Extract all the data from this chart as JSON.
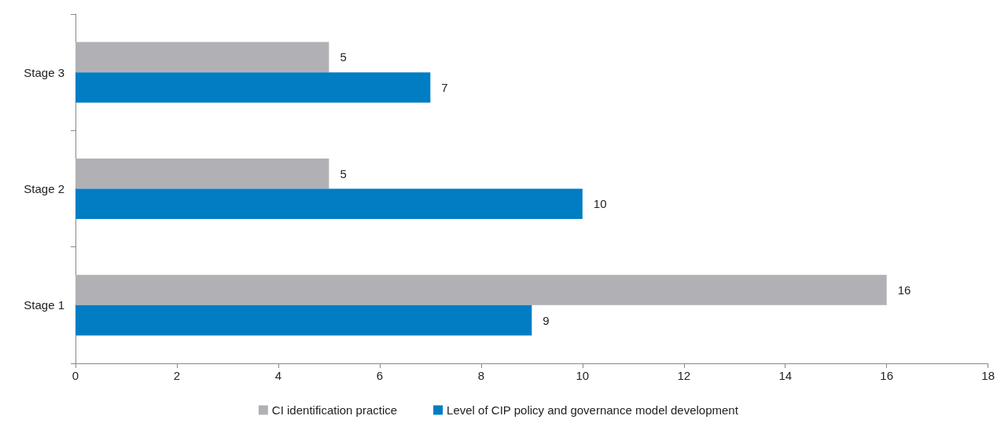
{
  "chart_data": {
    "type": "bar",
    "orientation": "horizontal",
    "categories": [
      "Stage 3",
      "Stage 2",
      "Stage 1"
    ],
    "series": [
      {
        "name": "CI identification practice",
        "color": "#b1b1b5",
        "values": [
          5,
          5,
          16
        ]
      },
      {
        "name": "Level of CIP policy and governance model development",
        "color": "#007dc3",
        "values": [
          7,
          10,
          9
        ]
      }
    ],
    "xlim": [
      0,
      18
    ],
    "xticks": [
      0,
      2,
      4,
      6,
      8,
      10,
      12,
      14,
      16,
      18
    ],
    "grid": false,
    "legend": "bottom",
    "data_labels": true
  }
}
